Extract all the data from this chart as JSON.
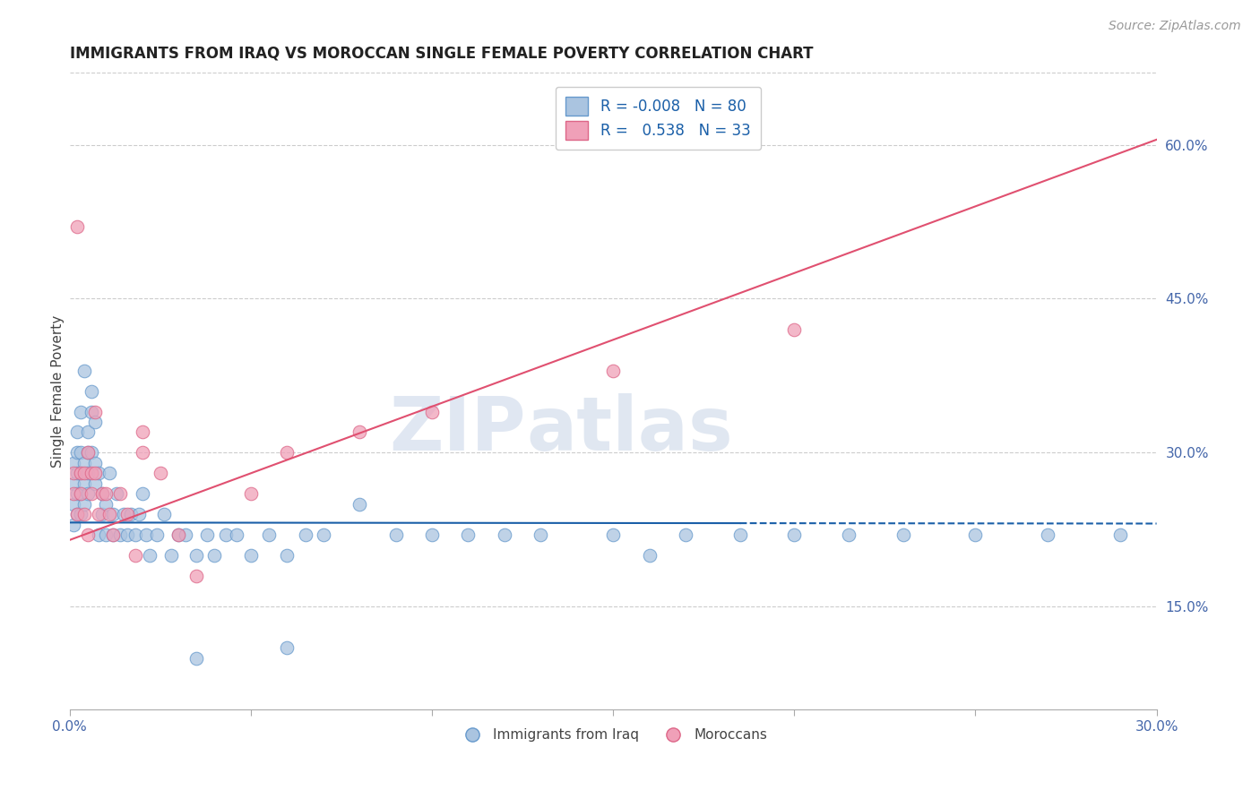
{
  "title": "IMMIGRANTS FROM IRAQ VS MOROCCAN SINGLE FEMALE POVERTY CORRELATION CHART",
  "source_text": "Source: ZipAtlas.com",
  "ylabel": "Single Female Poverty",
  "xlim": [
    0.0,
    0.3
  ],
  "ylim": [
    0.05,
    0.67
  ],
  "xticks": [
    0.0,
    0.05,
    0.1,
    0.15,
    0.2,
    0.25,
    0.3
  ],
  "xticklabels_show": [
    "0.0%",
    "30.0%"
  ],
  "yticks_right": [
    0.15,
    0.3,
    0.45,
    0.6
  ],
  "ytick_labels_right": [
    "15.0%",
    "30.0%",
    "45.0%",
    "60.0%"
  ],
  "iraq_color": "#aac4e0",
  "iraq_edge_color": "#6699cc",
  "morocco_color": "#f0a0b8",
  "morocco_edge_color": "#dd6688",
  "trend_iraq_color": "#1a5fa8",
  "trend_morocco_color": "#e05070",
  "legend_R_iraq": "-0.008",
  "legend_N_iraq": "80",
  "legend_R_morocco": "0.538",
  "legend_N_morocco": "33",
  "iraq_x": [
    0.001,
    0.001,
    0.001,
    0.001,
    0.002,
    0.002,
    0.002,
    0.002,
    0.002,
    0.003,
    0.003,
    0.003,
    0.003,
    0.003,
    0.004,
    0.004,
    0.004,
    0.004,
    0.005,
    0.005,
    0.005,
    0.005,
    0.006,
    0.006,
    0.006,
    0.007,
    0.007,
    0.007,
    0.008,
    0.008,
    0.009,
    0.009,
    0.01,
    0.01,
    0.011,
    0.012,
    0.012,
    0.013,
    0.014,
    0.015,
    0.016,
    0.017,
    0.018,
    0.019,
    0.02,
    0.021,
    0.022,
    0.024,
    0.026,
    0.028,
    0.03,
    0.032,
    0.035,
    0.038,
    0.04,
    0.043,
    0.046,
    0.05,
    0.055,
    0.06,
    0.065,
    0.07,
    0.08,
    0.09,
    0.1,
    0.11,
    0.12,
    0.13,
    0.15,
    0.16,
    0.17,
    0.185,
    0.2,
    0.215,
    0.23,
    0.25,
    0.27,
    0.29,
    0.035,
    0.06
  ],
  "iraq_y": [
    0.23,
    0.25,
    0.27,
    0.29,
    0.24,
    0.26,
    0.28,
    0.3,
    0.32,
    0.24,
    0.26,
    0.28,
    0.3,
    0.34,
    0.25,
    0.27,
    0.29,
    0.38,
    0.26,
    0.28,
    0.3,
    0.32,
    0.3,
    0.34,
    0.36,
    0.27,
    0.29,
    0.33,
    0.28,
    0.22,
    0.24,
    0.26,
    0.22,
    0.25,
    0.28,
    0.22,
    0.24,
    0.26,
    0.22,
    0.24,
    0.22,
    0.24,
    0.22,
    0.24,
    0.26,
    0.22,
    0.2,
    0.22,
    0.24,
    0.2,
    0.22,
    0.22,
    0.2,
    0.22,
    0.2,
    0.22,
    0.22,
    0.2,
    0.22,
    0.2,
    0.22,
    0.22,
    0.25,
    0.22,
    0.22,
    0.22,
    0.22,
    0.22,
    0.22,
    0.2,
    0.22,
    0.22,
    0.22,
    0.22,
    0.22,
    0.22,
    0.22,
    0.22,
    0.1,
    0.11
  ],
  "morocco_x": [
    0.001,
    0.001,
    0.002,
    0.002,
    0.003,
    0.003,
    0.004,
    0.004,
    0.005,
    0.005,
    0.006,
    0.006,
    0.007,
    0.007,
    0.008,
    0.009,
    0.01,
    0.011,
    0.012,
    0.014,
    0.016,
    0.018,
    0.02,
    0.025,
    0.03,
    0.035,
    0.05,
    0.06,
    0.08,
    0.1,
    0.15,
    0.2,
    0.02
  ],
  "morocco_y": [
    0.26,
    0.28,
    0.24,
    0.52,
    0.26,
    0.28,
    0.24,
    0.28,
    0.22,
    0.3,
    0.26,
    0.28,
    0.34,
    0.28,
    0.24,
    0.26,
    0.26,
    0.24,
    0.22,
    0.26,
    0.24,
    0.2,
    0.3,
    0.28,
    0.22,
    0.18,
    0.26,
    0.3,
    0.32,
    0.34,
    0.38,
    0.42,
    0.32
  ],
  "iraq_trend_y0": 0.232,
  "iraq_trend_y1": 0.231,
  "morocco_trend_y0": 0.215,
  "morocco_trend_y1": 0.605,
  "watermark_zip": "ZIP",
  "watermark_atlas": "atlas",
  "background_color": "#ffffff",
  "grid_color": "#cccccc"
}
